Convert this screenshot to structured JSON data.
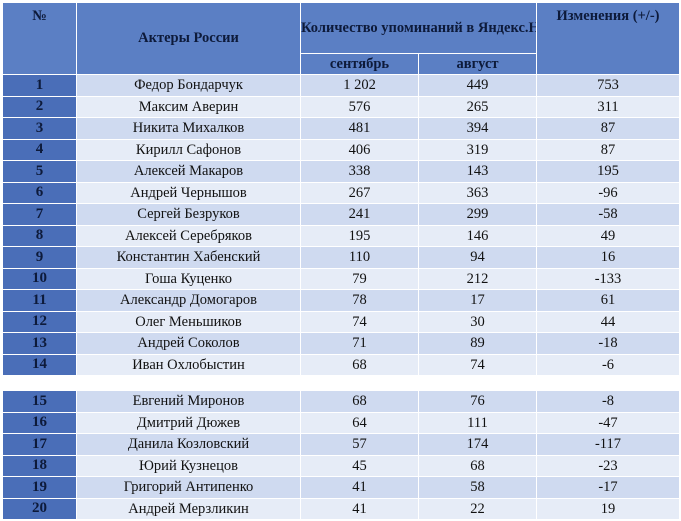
{
  "table": {
    "headers": {
      "num": "№",
      "actor": "Актеры России",
      "mentions": "Количество упоминаний в Яндекс.Новости, за месяц",
      "change": "Изменения (+/-)",
      "sep": "сентябрь",
      "aug": "август"
    },
    "group1": [
      {
        "n": "1",
        "name": "Федор Бондарчук",
        "sep": "1 202",
        "aug": "449",
        "chg": "753"
      },
      {
        "n": "2",
        "name": "Максим Аверин",
        "sep": "576",
        "aug": "265",
        "chg": "311"
      },
      {
        "n": "3",
        "name": "Никита Михалков",
        "sep": "481",
        "aug": "394",
        "chg": "87"
      },
      {
        "n": "4",
        "name": "Кирилл Сафонов",
        "sep": "406",
        "aug": "319",
        "chg": "87"
      },
      {
        "n": "5",
        "name": "Алексей Макаров",
        "sep": "338",
        "aug": "143",
        "chg": "195"
      },
      {
        "n": "6",
        "name": "Андрей Чернышов",
        "sep": "267",
        "aug": "363",
        "chg": "-96"
      },
      {
        "n": "7",
        "name": "Сергей Безруков",
        "sep": "241",
        "aug": "299",
        "chg": "-58"
      },
      {
        "n": "8",
        "name": "Алексей Серебряков",
        "sep": "195",
        "aug": "146",
        "chg": "49"
      },
      {
        "n": "9",
        "name": "Константин Хабенский",
        "sep": "110",
        "aug": "94",
        "chg": "16"
      },
      {
        "n": "10",
        "name": "Гоша Куценко",
        "sep": "79",
        "aug": "212",
        "chg": "-133"
      },
      {
        "n": "11",
        "name": "Александр Домогаров",
        "sep": "78",
        "aug": "17",
        "chg": "61"
      },
      {
        "n": "12",
        "name": "Олег Меньшиков",
        "sep": "74",
        "aug": "30",
        "chg": "44"
      },
      {
        "n": "13",
        "name": "Андрей Соколов",
        "sep": "71",
        "aug": "89",
        "chg": "-18"
      },
      {
        "n": "14",
        "name": "Иван Охлобыстин",
        "sep": "68",
        "aug": "74",
        "chg": "-6"
      }
    ],
    "group2": [
      {
        "n": "15",
        "name": "Евгений Миронов",
        "sep": "68",
        "aug": "76",
        "chg": "-8"
      },
      {
        "n": "16",
        "name": "Дмитрий Дюжев",
        "sep": "64",
        "aug": "111",
        "chg": "-47"
      },
      {
        "n": "17",
        "name": "Данила Козловский",
        "sep": "57",
        "aug": "174",
        "chg": "-117"
      },
      {
        "n": "18",
        "name": "Юрий Кузнецов",
        "sep": "45",
        "aug": "68",
        "chg": "-23"
      },
      {
        "n": "19",
        "name": "Григорий Антипенко",
        "sep": "41",
        "aug": "58",
        "chg": "-17"
      },
      {
        "n": "20",
        "name": "Андрей Мерзликин",
        "sep": "41",
        "aug": "22",
        "chg": "19"
      }
    ]
  }
}
